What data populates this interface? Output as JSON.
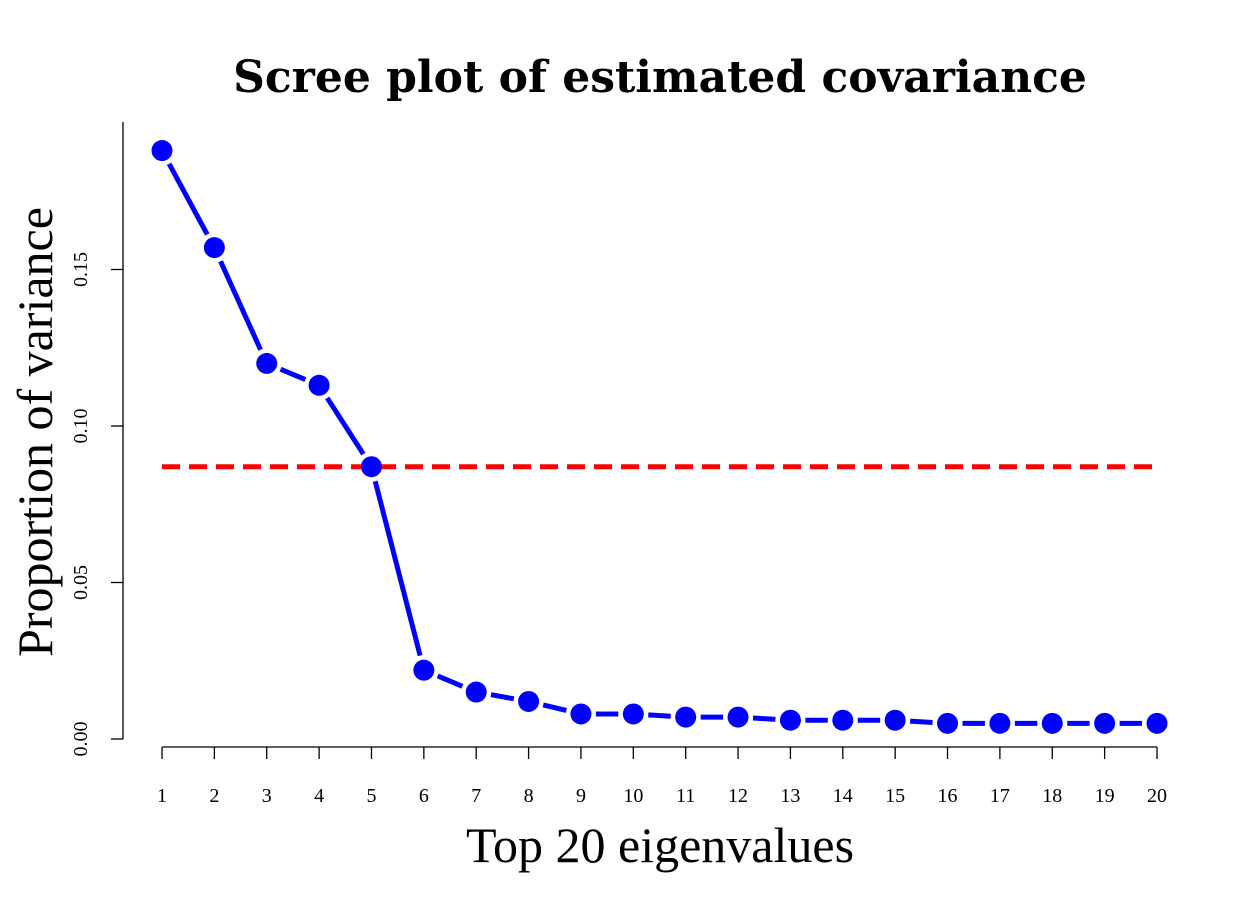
{
  "chart_data": {
    "type": "line",
    "title": "Scree plot of estimated covariance",
    "xlabel": "Top 20 eigenvalues",
    "ylabel": "Proportion of variance",
    "x": [
      1,
      2,
      3,
      4,
      5,
      6,
      7,
      8,
      9,
      10,
      11,
      12,
      13,
      14,
      15,
      16,
      17,
      18,
      19,
      20
    ],
    "x_tick_labels": [
      "1",
      "2",
      "3",
      "4",
      "5",
      "6",
      "7",
      "8",
      "9",
      "10",
      "11",
      "12",
      "13",
      "14",
      "15",
      "16",
      "17",
      "18",
      "19",
      "20"
    ],
    "y_ticks": [
      0.0,
      0.05,
      0.1,
      0.15
    ],
    "y_tick_labels": [
      "0.00",
      "0.05",
      "0.10",
      "0.15"
    ],
    "ylim": [
      0.0,
      0.19
    ],
    "series": [
      {
        "values": [
          0.188,
          0.157,
          0.12,
          0.113,
          0.087,
          0.022,
          0.015,
          0.012,
          0.008,
          0.008,
          0.007,
          0.007,
          0.006,
          0.006,
          0.006,
          0.005,
          0.005,
          0.005,
          0.005,
          0.005
        ],
        "color": "#0000ff"
      }
    ],
    "reference_line": {
      "y": 0.087,
      "style": "dashed",
      "color": "#ff0000"
    },
    "grid": false,
    "legend": "none"
  }
}
